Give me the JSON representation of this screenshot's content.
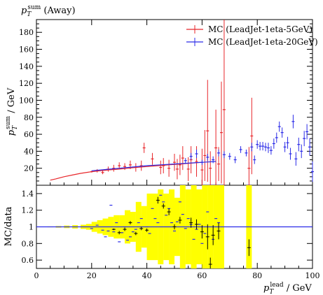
{
  "title": {
    "base": "p",
    "sub": "T",
    "sup": "sum",
    "suffix": " (Away)"
  },
  "main_ylabel": {
    "base": "p",
    "sub": "T",
    "sup": "sum",
    "suffix": " / GeV"
  },
  "ratio_ylabel": "MC/data",
  "xlabel": {
    "base": "p",
    "sub": "T",
    "sup": "lead",
    "suffix": " / GeV"
  },
  "legend": [
    {
      "label": "MC (LeadJet-1eta-5GeV)",
      "color": "#e8262a"
    },
    {
      "label": "MC (LeadJet-1eta-20GeV)",
      "color": "#2a2ae8"
    }
  ],
  "colors": {
    "band": "#ffff00",
    "data": "#000000",
    "red": "#e8262a",
    "blue": "#2a2ae8"
  },
  "chart_data": {
    "type": "line",
    "x_range": [
      0,
      100
    ],
    "x_ticks": [
      0,
      20,
      40,
      60,
      80,
      100
    ],
    "main": {
      "y_range": [
        0,
        195
      ],
      "y_ticks": [
        20,
        40,
        60,
        80,
        100,
        120,
        140,
        160,
        180
      ],
      "series": [
        {
          "name": "MC (LeadJet-1eta-5GeV)",
          "color": "red",
          "line": [
            [
              5,
              6
            ],
            [
              7,
              7.5
            ],
            [
              10,
              10
            ],
            [
              13,
              12
            ],
            [
              16,
              14
            ],
            [
              20,
              16
            ],
            [
              23,
              17
            ],
            [
              26,
              18
            ],
            [
              30,
              19
            ],
            [
              33,
              20
            ],
            [
              36,
              21
            ],
            [
              40,
              22
            ],
            [
              44,
              23
            ],
            [
              48,
              24
            ],
            [
              52,
              25
            ],
            [
              56,
              26
            ],
            [
              60,
              27
            ]
          ],
          "points": [
            [
              20,
              16,
              1
            ],
            [
              22,
              17,
              2
            ],
            [
              24,
              15,
              2
            ],
            [
              26,
              19,
              3
            ],
            [
              28,
              20,
              4
            ],
            [
              30,
              23,
              4
            ],
            [
              32,
              22,
              4
            ],
            [
              34,
              24,
              5
            ],
            [
              36,
              21,
              5
            ],
            [
              38,
              23,
              6
            ],
            [
              39,
              44,
              6
            ],
            [
              42,
              31,
              7
            ],
            [
              45,
              21,
              8
            ],
            [
              46,
              23,
              9
            ],
            [
              48,
              20,
              10
            ],
            [
              50,
              27,
              10
            ],
            [
              51,
              19,
              12
            ],
            [
              52,
              24,
              12
            ],
            [
              53,
              32,
              14
            ],
            [
              55,
              19,
              14
            ],
            [
              56,
              30,
              16
            ],
            [
              58,
              28,
              18
            ],
            [
              60,
              18,
              25
            ],
            [
              61,
              35,
              30
            ],
            [
              62,
              64,
              60
            ],
            [
              63,
              20,
              20
            ],
            [
              65,
              44,
              45
            ],
            [
              66,
              25,
              20
            ],
            [
              67,
              62,
              60
            ],
            [
              68,
              89,
              110
            ],
            [
              77,
              20,
              25
            ],
            [
              78,
              58,
              45
            ]
          ]
        },
        {
          "name": "MC (LeadJet-1eta-20GeV)",
          "color": "blue",
          "line": [
            [
              20,
              17
            ],
            [
              25,
              18.5
            ],
            [
              30,
              20
            ],
            [
              35,
              21.5
            ],
            [
              40,
              23
            ],
            [
              45,
              24
            ],
            [
              50,
              25
            ],
            [
              55,
              26
            ],
            [
              60,
              27
            ],
            [
              65,
              28
            ]
          ],
          "points": [
            [
              54,
              29,
              3
            ],
            [
              56,
              34,
              4
            ],
            [
              58,
              37,
              5
            ],
            [
              60,
              27,
              3
            ],
            [
              62,
              33,
              4
            ],
            [
              64,
              30,
              4
            ],
            [
              66,
              38,
              4
            ],
            [
              68,
              36,
              4
            ],
            [
              70,
              34,
              4
            ],
            [
              72,
              30,
              4
            ],
            [
              74,
              42,
              4
            ],
            [
              76,
              38,
              4
            ],
            [
              78,
              45,
              5
            ],
            [
              79,
              30,
              5
            ],
            [
              80,
              48,
              5
            ],
            [
              81,
              46,
              5
            ],
            [
              82,
              46,
              5
            ],
            [
              83,
              45,
              5
            ],
            [
              84,
              44,
              6
            ],
            [
              85,
              41,
              5
            ],
            [
              86,
              49,
              6
            ],
            [
              87,
              56,
              6
            ],
            [
              88,
              69,
              6
            ],
            [
              89,
              62,
              6
            ],
            [
              90,
              45,
              6
            ],
            [
              91,
              50,
              7
            ],
            [
              92,
              37,
              7
            ],
            [
              93,
              75,
              8
            ],
            [
              94,
              31,
              8
            ],
            [
              95,
              48,
              8
            ],
            [
              96,
              40,
              8
            ],
            [
              97,
              55,
              9
            ],
            [
              98,
              63,
              9
            ],
            [
              99,
              45,
              10
            ],
            [
              100,
              16,
              12
            ]
          ]
        }
      ]
    },
    "ratio": {
      "y_range": [
        0.5,
        1.5
      ],
      "y_ticks": [
        0.6,
        0.8,
        1,
        1.2,
        1.4
      ],
      "reference": 1,
      "band": [
        [
          5,
          1,
          0.005
        ],
        [
          8,
          1,
          0.01
        ],
        [
          11,
          1,
          0.015
        ],
        [
          14,
          1,
          0.02
        ],
        [
          17,
          1,
          0.025
        ],
        [
          19,
          1,
          0.035
        ],
        [
          21,
          1,
          0.06
        ],
        [
          23,
          1,
          0.08
        ],
        [
          25,
          1,
          0.1
        ],
        [
          27,
          1,
          0.12
        ],
        [
          29,
          1,
          0.14
        ],
        [
          31,
          1,
          0.14
        ],
        [
          33,
          1,
          0.2
        ],
        [
          35,
          1,
          0.18
        ],
        [
          37,
          1,
          0.3
        ],
        [
          39,
          1,
          0.25
        ],
        [
          41,
          1,
          0.4
        ],
        [
          43,
          1,
          0.4
        ],
        [
          45,
          1,
          0.45
        ],
        [
          47,
          1,
          0.4
        ],
        [
          49,
          1,
          0.45
        ],
        [
          51,
          1,
          0.35
        ],
        [
          53,
          1,
          0.6
        ],
        [
          55,
          1,
          0.45
        ],
        [
          57,
          1,
          0.5
        ],
        [
          59,
          1,
          0.45
        ],
        [
          61,
          1,
          0.6
        ],
        [
          63,
          1,
          0.6
        ],
        [
          65,
          1,
          0.6
        ],
        [
          67,
          1,
          0.6
        ],
        [
          77,
          1,
          0.6
        ]
      ],
      "black_points": [
        [
          28,
          0.97,
          0.01
        ],
        [
          30,
          0.93,
          0.02
        ],
        [
          32,
          0.97,
          0.02
        ],
        [
          34,
          1.05,
          0.02
        ],
        [
          36,
          0.92,
          0.02
        ],
        [
          38,
          0.98,
          0.02
        ],
        [
          40,
          0.96,
          0.02
        ],
        [
          44,
          1.32,
          0.04
        ],
        [
          46,
          1.25,
          0.03
        ],
        [
          48,
          1.18,
          0.04
        ],
        [
          50,
          1.0,
          0.03
        ],
        [
          52,
          1.08,
          0.04
        ],
        [
          56,
          1.05,
          0.06
        ],
        [
          58,
          1.03,
          0.06
        ],
        [
          60,
          0.94,
          0.08
        ],
        [
          62,
          0.88,
          0.15
        ],
        [
          63,
          0.55,
          0.08
        ],
        [
          64,
          0.9,
          0.12
        ],
        [
          66,
          0.95,
          0.1
        ],
        [
          77,
          0.75,
          0.1
        ]
      ],
      "blue_points": [
        [
          20,
          0.98
        ],
        [
          22,
          1.02
        ],
        [
          24,
          0.96
        ],
        [
          25,
          0.88
        ],
        [
          26,
          0.95
        ],
        [
          27,
          1.26
        ],
        [
          28,
          0.94
        ],
        [
          29,
          1.05
        ],
        [
          30,
          0.82
        ],
        [
          31,
          0.93
        ],
        [
          32,
          1.0
        ],
        [
          33,
          0.84
        ],
        [
          34,
          0.88
        ],
        [
          35,
          0.94
        ],
        [
          36,
          0.97
        ],
        [
          37,
          1.05
        ],
        [
          38,
          1.1
        ],
        [
          40,
          1.0
        ],
        [
          41,
          0.92
        ],
        [
          42,
          1.22
        ],
        [
          43,
          1.1
        ],
        [
          44,
          1.05
        ],
        [
          45,
          1.38
        ],
        [
          46,
          1.3
        ],
        [
          47,
          1.14
        ],
        [
          48,
          1.22
        ],
        [
          49,
          1.05
        ],
        [
          50,
          0.95
        ],
        [
          51,
          1.06
        ],
        [
          52,
          1.3
        ],
        [
          53,
          1.15
        ],
        [
          54,
          0.98
        ],
        [
          55,
          1.1
        ],
        [
          56,
          1.03
        ],
        [
          57,
          0.85
        ],
        [
          58,
          0.97
        ],
        [
          59,
          1.03
        ],
        [
          60,
          0.8
        ],
        [
          61,
          0.92
        ],
        [
          62,
          1.18
        ],
        [
          64,
          0.85
        ],
        [
          65,
          1.1
        ],
        [
          66,
          1.05
        ]
      ]
    }
  }
}
